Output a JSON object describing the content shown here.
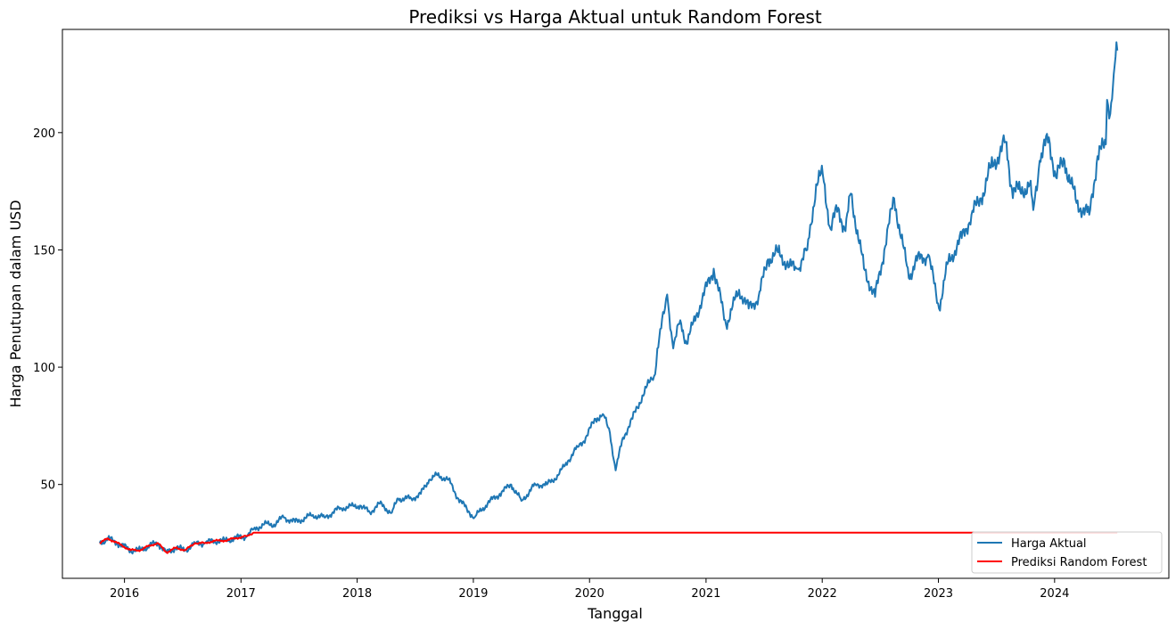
{
  "chart_data": {
    "type": "line",
    "title": "Prediksi vs Harga Aktual untuk Random Forest",
    "xlabel": "Tanggal",
    "ylabel": "Harga Penutupan dalam USD",
    "xlim": [
      "2015-06-20",
      "2024-12-25"
    ],
    "ylim": [
      10,
      244
    ],
    "x_ticks": [
      {
        "date": "2016-01-01",
        "label": "2016"
      },
      {
        "date": "2017-01-01",
        "label": "2017"
      },
      {
        "date": "2018-01-01",
        "label": "2018"
      },
      {
        "date": "2019-01-01",
        "label": "2019"
      },
      {
        "date": "2020-01-01",
        "label": "2020"
      },
      {
        "date": "2021-01-01",
        "label": "2021"
      },
      {
        "date": "2022-01-01",
        "label": "2022"
      },
      {
        "date": "2023-01-01",
        "label": "2023"
      },
      {
        "date": "2024-01-01",
        "label": "2024"
      }
    ],
    "y_ticks": [
      {
        "value": 50,
        "label": "50"
      },
      {
        "value": 100,
        "label": "100"
      },
      {
        "value": 150,
        "label": "150"
      },
      {
        "value": 200,
        "label": "200"
      }
    ],
    "grid": false,
    "legend_position": "bottom-right",
    "series": [
      {
        "name": "Harga Aktual",
        "color": "#1f77b4",
        "points": [
          [
            "2015-10-15",
            25
          ],
          [
            "2015-11-10",
            27
          ],
          [
            "2015-12-10",
            25
          ],
          [
            "2016-01-20",
            22
          ],
          [
            "2016-02-20",
            22
          ],
          [
            "2016-03-20",
            24
          ],
          [
            "2016-04-15",
            25
          ],
          [
            "2016-05-12",
            21
          ],
          [
            "2016-06-10",
            23
          ],
          [
            "2016-07-10",
            22
          ],
          [
            "2016-08-10",
            25
          ],
          [
            "2016-09-10",
            25
          ],
          [
            "2016-10-10",
            26
          ],
          [
            "2016-11-10",
            26
          ],
          [
            "2016-12-10",
            27
          ],
          [
            "2017-01-20",
            28
          ],
          [
            "2017-02-10",
            31
          ],
          [
            "2017-03-15",
            33
          ],
          [
            "2017-04-15",
            33
          ],
          [
            "2017-05-15",
            36
          ],
          [
            "2017-06-20",
            34
          ],
          [
            "2017-08-15",
            37
          ],
          [
            "2017-09-20",
            36
          ],
          [
            "2017-11-10",
            40
          ],
          [
            "2018-01-10",
            41
          ],
          [
            "2018-02-10",
            38
          ],
          [
            "2018-03-10",
            42
          ],
          [
            "2018-04-20",
            38
          ],
          [
            "2018-05-10",
            44
          ],
          [
            "2018-06-20",
            44
          ],
          [
            "2018-07-20",
            46
          ],
          [
            "2018-08-15",
            52
          ],
          [
            "2018-09-10",
            54
          ],
          [
            "2018-10-15",
            52
          ],
          [
            "2018-11-15",
            44
          ],
          [
            "2018-12-20",
            38
          ],
          [
            "2019-01-05",
            36
          ],
          [
            "2019-02-15",
            42
          ],
          [
            "2019-03-25",
            46
          ],
          [
            "2019-04-30",
            50
          ],
          [
            "2019-06-01",
            43
          ],
          [
            "2019-07-15",
            50
          ],
          [
            "2019-08-20",
            50
          ],
          [
            "2019-09-25",
            54
          ],
          [
            "2019-10-25",
            60
          ],
          [
            "2019-11-25",
            66
          ],
          [
            "2019-12-20",
            70
          ],
          [
            "2020-01-20",
            78
          ],
          [
            "2020-02-12",
            80
          ],
          [
            "2020-03-05",
            72
          ],
          [
            "2020-03-23",
            56
          ],
          [
            "2020-04-15",
            70
          ],
          [
            "2020-05-15",
            78
          ],
          [
            "2020-06-15",
            88
          ],
          [
            "2020-07-15",
            95
          ],
          [
            "2020-07-25",
            97
          ],
          [
            "2020-08-01",
            108
          ],
          [
            "2020-08-25",
            125
          ],
          [
            "2020-09-01",
            131
          ],
          [
            "2020-09-20",
            108
          ],
          [
            "2020-10-12",
            120
          ],
          [
            "2020-11-01",
            110
          ],
          [
            "2020-12-01",
            122
          ],
          [
            "2021-01-25",
            142
          ],
          [
            "2021-03-05",
            118
          ],
          [
            "2021-04-15",
            133
          ],
          [
            "2021-05-15",
            125
          ],
          [
            "2021-06-15",
            130
          ],
          [
            "2021-07-15",
            146
          ],
          [
            "2021-08-15",
            149
          ],
          [
            "2021-09-20",
            143
          ],
          [
            "2021-10-15",
            142
          ],
          [
            "2021-11-15",
            150
          ],
          [
            "2021-12-13",
            178
          ],
          [
            "2022-01-03",
            182
          ],
          [
            "2022-01-27",
            159
          ],
          [
            "2022-02-20",
            168
          ],
          [
            "2022-03-15",
            158
          ],
          [
            "2022-04-01",
            174
          ],
          [
            "2022-05-12",
            142
          ],
          [
            "2022-06-16",
            130
          ],
          [
            "2022-07-15",
            150
          ],
          [
            "2022-08-15",
            172
          ],
          [
            "2022-09-30",
            138
          ],
          [
            "2022-10-20",
            145
          ],
          [
            "2022-11-30",
            148
          ],
          [
            "2023-01-03",
            125
          ],
          [
            "2023-02-01",
            145
          ],
          [
            "2023-03-15",
            155
          ],
          [
            "2023-04-15",
            165
          ],
          [
            "2023-05-15",
            172
          ],
          [
            "2023-06-15",
            185
          ],
          [
            "2023-07-31",
            196
          ],
          [
            "2023-08-20",
            176
          ],
          [
            "2023-09-15",
            175
          ],
          [
            "2023-10-15",
            178
          ],
          [
            "2023-10-26",
            167
          ],
          [
            "2023-11-15",
            188
          ],
          [
            "2023-12-14",
            198
          ],
          [
            "2024-01-05",
            181
          ],
          [
            "2024-02-01",
            188
          ],
          [
            "2024-03-10",
            170
          ],
          [
            "2024-04-19",
            165
          ],
          [
            "2024-05-15",
            190
          ],
          [
            "2024-06-10",
            195
          ],
          [
            "2024-06-14",
            214
          ],
          [
            "2024-06-24",
            208
          ],
          [
            "2024-07-05",
            225
          ],
          [
            "2024-07-16",
            235
          ]
        ]
      },
      {
        "name": "Prediksi Random Forest",
        "color": "#ff0000",
        "points": [
          [
            "2015-10-15",
            25
          ],
          [
            "2015-11-10",
            27
          ],
          [
            "2015-12-10",
            25
          ],
          [
            "2016-01-20",
            22
          ],
          [
            "2016-02-20",
            22
          ],
          [
            "2016-03-20",
            24
          ],
          [
            "2016-04-15",
            25
          ],
          [
            "2016-05-12",
            21
          ],
          [
            "2016-06-10",
            23
          ],
          [
            "2016-07-10",
            22
          ],
          [
            "2016-08-10",
            25
          ],
          [
            "2016-09-10",
            25
          ],
          [
            "2016-10-10",
            26
          ],
          [
            "2016-11-10",
            26
          ],
          [
            "2016-12-10",
            27
          ],
          [
            "2017-01-20",
            28
          ],
          [
            "2017-02-10",
            29.5
          ],
          [
            "2024-07-16",
            29.5
          ]
        ]
      }
    ]
  }
}
